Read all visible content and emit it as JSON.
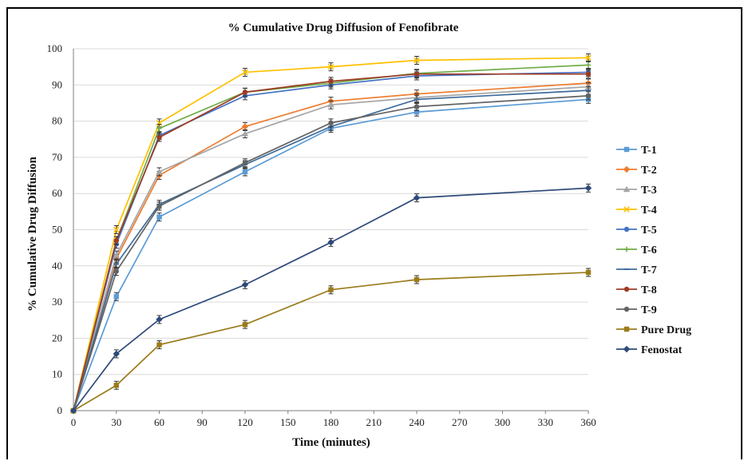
{
  "chart_data": {
    "type": "line",
    "title": "% Cumulative Drug Diffusion of Fenofibrate",
    "xlabel": "Time (minutes)",
    "ylabel": "% Cumulative Drug Diffusion",
    "x": [
      0,
      30,
      60,
      120,
      180,
      240,
      360
    ],
    "xlim": [
      0,
      360
    ],
    "ylim": [
      0,
      100
    ],
    "xticks": [
      0,
      30,
      60,
      90,
      120,
      150,
      180,
      210,
      240,
      270,
      300,
      330,
      360
    ],
    "yticks": [
      0,
      10,
      20,
      30,
      40,
      50,
      60,
      70,
      80,
      90,
      100
    ],
    "grid": true,
    "error_bars": true,
    "legend_position": "right",
    "series": [
      {
        "name": "T-1",
        "color": "#5b9bd5",
        "marker": "square",
        "values": [
          0,
          31.5,
          53.5,
          66,
          78,
          82.5,
          86
        ]
      },
      {
        "name": "T-2",
        "color": "#ed7d31",
        "marker": "diamond",
        "values": [
          0,
          42,
          65,
          78.5,
          85.5,
          87.5,
          90.5
        ]
      },
      {
        "name": "T-3",
        "color": "#a5a5a5",
        "marker": "triangle",
        "values": [
          0,
          43,
          66,
          76.5,
          84.5,
          86.5,
          89.5
        ]
      },
      {
        "name": "T-4",
        "color": "#ffc000",
        "marker": "x",
        "values": [
          0,
          50,
          79.5,
          93.5,
          95,
          96.8,
          97.5
        ]
      },
      {
        "name": "T-5",
        "color": "#4472c4",
        "marker": "circle",
        "values": [
          0,
          46,
          76,
          87,
          90,
          92.5,
          93.5
        ]
      },
      {
        "name": "T-6",
        "color": "#70ad47",
        "marker": "plus",
        "values": [
          0,
          47,
          78,
          88,
          90.5,
          93.2,
          95.5
        ]
      },
      {
        "name": "T-7",
        "color": "#3d6b9b",
        "marker": "line",
        "values": [
          0,
          40.5,
          57,
          68,
          78.5,
          86,
          88.5
        ]
      },
      {
        "name": "T-8",
        "color": "#9e3b25",
        "marker": "circle",
        "values": [
          0,
          47,
          75.5,
          88,
          91,
          93,
          93
        ]
      },
      {
        "name": "T-9",
        "color": "#636363",
        "marker": "circle",
        "values": [
          0,
          38.5,
          56.5,
          68.5,
          79.5,
          84,
          87
        ]
      },
      {
        "name": "Pure Drug",
        "color": "#9b7b1a",
        "marker": "square",
        "values": [
          0,
          7,
          18.2,
          23.8,
          33.4,
          36.2,
          38.2
        ]
      },
      {
        "name": "Fenostat",
        "color": "#2e4a7a",
        "marker": "diamond",
        "values": [
          0,
          15.7,
          25.2,
          34.8,
          46.5,
          58.8,
          61.5
        ]
      }
    ]
  }
}
